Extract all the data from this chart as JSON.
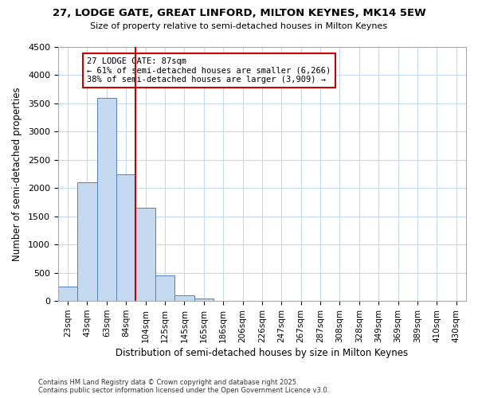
{
  "title": "27, LODGE GATE, GREAT LINFORD, MILTON KEYNES, MK14 5EW",
  "subtitle": "Size of property relative to semi-detached houses in Milton Keynes",
  "xlabel": "Distribution of semi-detached houses by size in Milton Keynes",
  "ylabel": "Number of semi-detached properties",
  "footer_line1": "Contains HM Land Registry data © Crown copyright and database right 2025.",
  "footer_line2": "Contains public sector information licensed under the Open Government Licence v3.0.",
  "annotation_title": "27 LODGE GATE: 87sqm",
  "annotation_line1": "← 61% of semi-detached houses are smaller (6,266)",
  "annotation_line2": "38% of semi-detached houses are larger (3,909) →",
  "categories": [
    "23sqm",
    "43sqm",
    "63sqm",
    "84sqm",
    "104sqm",
    "125sqm",
    "145sqm",
    "165sqm",
    "186sqm",
    "206sqm",
    "226sqm",
    "247sqm",
    "267sqm",
    "287sqm",
    "308sqm",
    "328sqm",
    "349sqm",
    "369sqm",
    "389sqm",
    "410sqm",
    "430sqm"
  ],
  "values": [
    250,
    2100,
    3600,
    2250,
    1650,
    450,
    100,
    50,
    0,
    0,
    0,
    0,
    0,
    0,
    0,
    0,
    0,
    0,
    0,
    0,
    0
  ],
  "bar_color": "#c5d9f0",
  "bar_edge_color": "#4f81bd",
  "vline_color": "#cc0000",
  "annotation_box_edge": "#cc0000",
  "background_color": "#ffffff",
  "grid_color": "#c5d9f0",
  "ylim": [
    0,
    4500
  ],
  "yticks": [
    0,
    500,
    1000,
    1500,
    2000,
    2500,
    3000,
    3500,
    4000,
    4500
  ],
  "property_bin": 3
}
